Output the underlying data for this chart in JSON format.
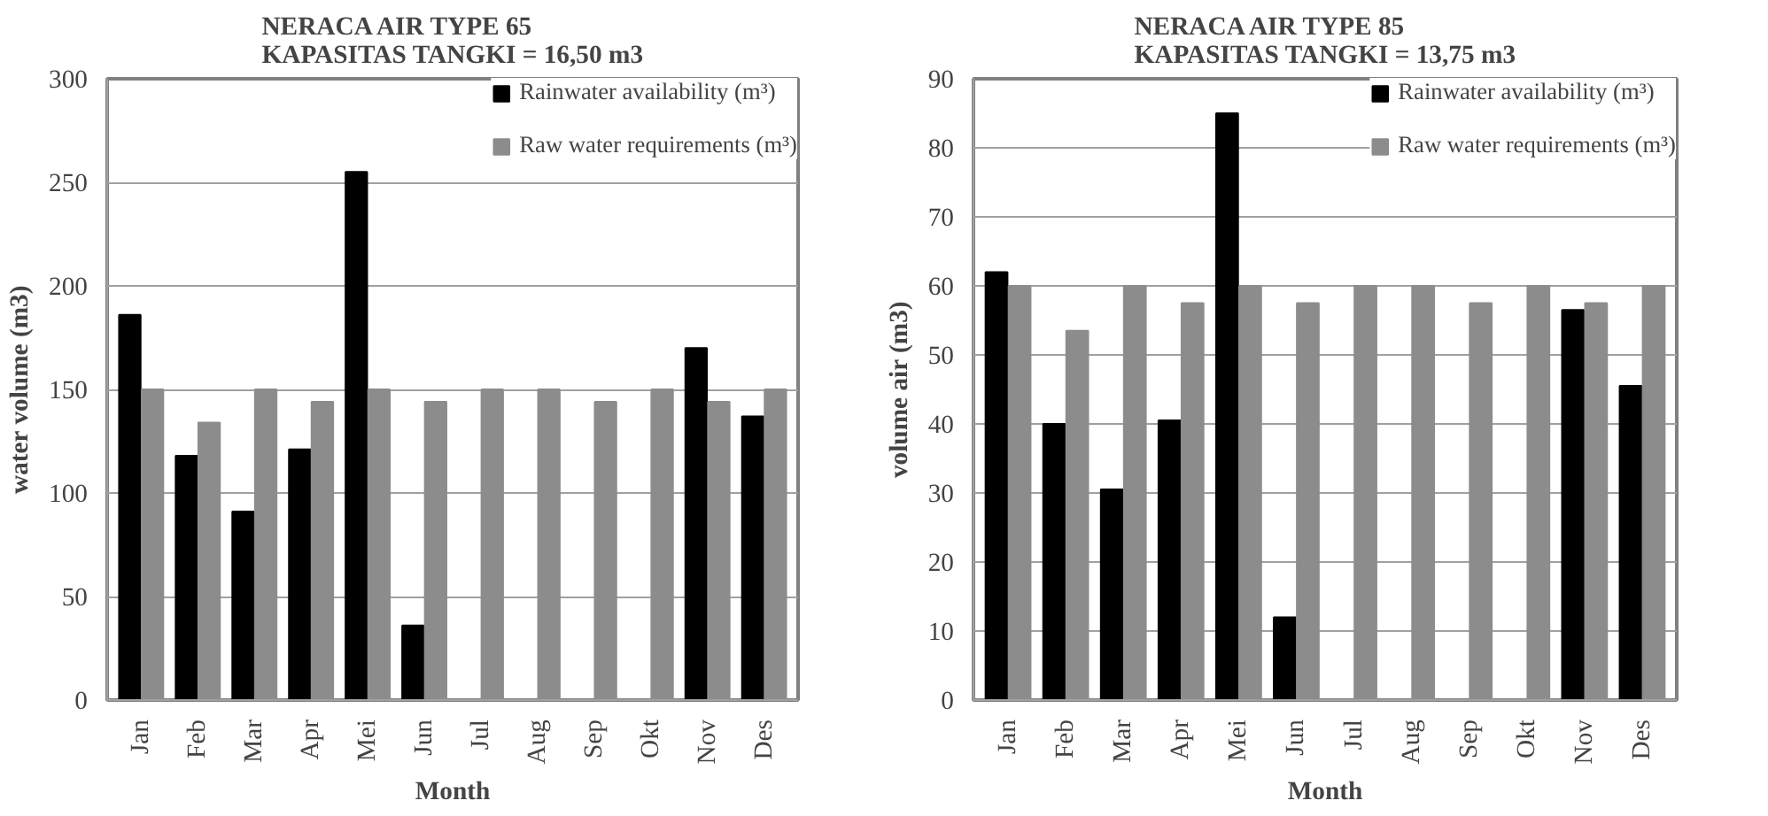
{
  "chart_data": [
    {
      "type": "bar",
      "title": "NERACA AIR TYPE 65\nKAPASITAS TANGKI = 16,50 m3",
      "xlabel": "Month",
      "ylabel": "water volume (m3)",
      "categories": [
        "Jan",
        "Feb",
        "Mar",
        "Apr",
        "Mei",
        "Jun",
        "Jul",
        "Aug",
        "Sep",
        "Okt",
        "Nov",
        "Des"
      ],
      "series": [
        {
          "name": "Rainwater availability (m³)",
          "color": "#000000",
          "values": [
            186,
            118,
            91,
            121,
            255,
            36,
            null,
            null,
            null,
            null,
            170,
            137
          ]
        },
        {
          "name": "Raw water requirements (m³)",
          "color": "#8c8c8c",
          "values": [
            150,
            134,
            150,
            144,
            150,
            144,
            150,
            150,
            144,
            150,
            144,
            150
          ]
        }
      ],
      "ylim": [
        0,
        300
      ],
      "yticks": [
        0,
        50,
        100,
        150,
        200,
        250,
        300
      ],
      "grid": "y",
      "legend": "top right"
    },
    {
      "type": "bar",
      "title": "NERACA AIR TYPE 85\nKAPASITAS TANGKI = 13,75 m3",
      "xlabel": "Month",
      "ylabel": "volume air (m3)",
      "categories": [
        "Jan",
        "Feb",
        "Mar",
        "Apr",
        "Mei",
        "Jun",
        "Jul",
        "Aug",
        "Sep",
        "Okt",
        "Nov",
        "Des"
      ],
      "series": [
        {
          "name": "Rainwater availability (m³)",
          "color": "#000000",
          "values": [
            62,
            40,
            30.5,
            40.5,
            85,
            12,
            null,
            null,
            null,
            null,
            56.5,
            45.5
          ]
        },
        {
          "name": "Raw water requirements (m³)",
          "color": "#8c8c8c",
          "values": [
            60,
            53.5,
            60,
            57.5,
            60,
            57.5,
            60,
            60,
            57.5,
            60,
            57.5,
            60
          ]
        }
      ],
      "ylim": [
        0,
        90
      ],
      "yticks": [
        0,
        10,
        20,
        30,
        40,
        50,
        60,
        70,
        80,
        90
      ],
      "grid": "y",
      "legend": "top right"
    }
  ]
}
